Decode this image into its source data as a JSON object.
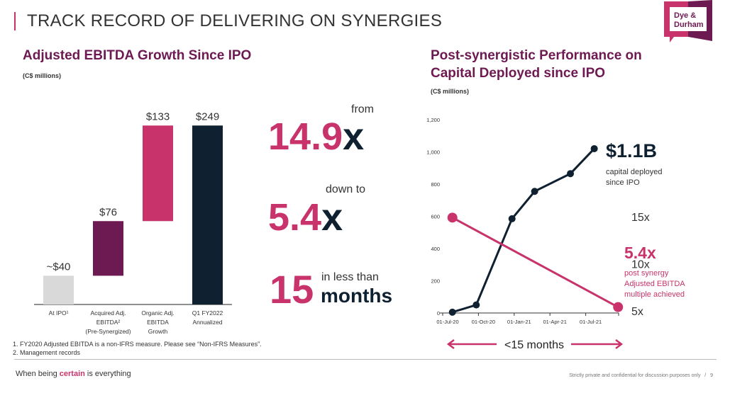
{
  "title": "TRACK RECORD OF DELIVERING ON SYNERGIES",
  "logo": {
    "text_line1": "Dye &",
    "text_line2": "Durham"
  },
  "colors": {
    "pink": "#c8336b",
    "purple": "#6e1a52",
    "navy": "#0f2130",
    "gray": "#d9d9d9"
  },
  "left": {
    "heading": "Adjusted EBITDA Growth Since IPO",
    "unit": "(C$ millions)"
  },
  "right": {
    "heading_line1": "Post-synergistic Performance on",
    "heading_line2": "Capital Deployed since IPO",
    "unit": "(C$ millions)"
  },
  "stats": {
    "s1_value": "14.9",
    "s1_x": "x",
    "s1_label": "from",
    "s2_value": "5.4",
    "s2_x": "x",
    "s2_label": "down to",
    "s3_value": "15",
    "s3_label": "in less than",
    "s3_unit": "months"
  },
  "chart_data": [
    {
      "type": "bar",
      "subtype": "waterfall",
      "title": "Adjusted EBITDA Growth Since IPO",
      "ylabel": "C$ millions",
      "categories": [
        "At IPO¹",
        "Acquired Adj. EBITDA² (Pre-Synergized)",
        "Organic Adj. EBITDA Growth",
        "Q1 FY2022 Annualized"
      ],
      "category_lines": [
        [
          "At IPO¹"
        ],
        [
          "Acquired Adj.",
          "EBITDA²",
          "(Pre-Synergized)"
        ],
        [
          "Organic Adj.",
          "EBITDA",
          "Growth"
        ],
        [
          "Q1 FY2022",
          "Annualized"
        ]
      ],
      "values": [
        40,
        76,
        133,
        249
      ],
      "bases": [
        0,
        40,
        116,
        0
      ],
      "labels": [
        "~$40",
        "$76",
        "$133",
        "$249"
      ],
      "bar_colors": [
        "#d9d9d9",
        "#6e1a52",
        "#c8336b",
        "#0f2130"
      ]
    },
    {
      "type": "line",
      "title": "Post-synergistic Performance on Capital Deployed since IPO",
      "ylim": [
        0,
        1200
      ],
      "yticks": [
        0,
        200,
        400,
        600,
        800,
        1000,
        1200
      ],
      "ytick_labels": [
        "0",
        "200",
        "400",
        "600",
        "800",
        "1,000",
        "1,200"
      ],
      "xticks_month": [
        0,
        3,
        6,
        9,
        12
      ],
      "xtick_labels": [
        "01-Jul-20",
        "01-Oct-20",
        "01-Jan-21",
        "01-Apr-21",
        "01-Jul-21"
      ],
      "right_axis": {
        "ylim": [
          5,
          15
        ],
        "ticks": [
          5,
          10,
          15
        ],
        "labels": [
          "5x",
          "10x",
          "15x"
        ]
      },
      "series": [
        {
          "name": "Capital deployed",
          "axis": "left",
          "color": "#0f2130",
          "x_month": [
            0.4,
            2.4,
            5.4,
            7.3,
            10.3,
            12.3
          ],
          "values": [
            5,
            50,
            585,
            755,
            865,
            1020
          ]
        },
        {
          "name": "Adjusted EBITDA multiple",
          "axis": "right",
          "color": "#c8336b",
          "x_month": [
            0.4,
            14.3
          ],
          "values": [
            14.9,
            5.4
          ]
        }
      ],
      "annotations": {
        "capital_value": "$1.1B",
        "capital_text1": "capital deployed",
        "capital_text2": "since IPO",
        "multiple_value": "5.4x",
        "multiple_text1": "post synergy",
        "multiple_text2": "Adjusted EBITDA",
        "multiple_text3": "multiple achieved",
        "duration": "<15 months"
      }
    }
  ],
  "footnotes": [
    "1.  FY2020 Adjusted EBITDA is a non-IFRS measure. Please see “Non-IFRS Measures”.",
    "2.  Management  records"
  ],
  "footer": {
    "tag_pre": "When being ",
    "tag_em": "certain",
    "tag_post": " is everything",
    "confidential": "Strictly private and confidential for discussion purposes only",
    "sep": "/",
    "page": "9"
  }
}
